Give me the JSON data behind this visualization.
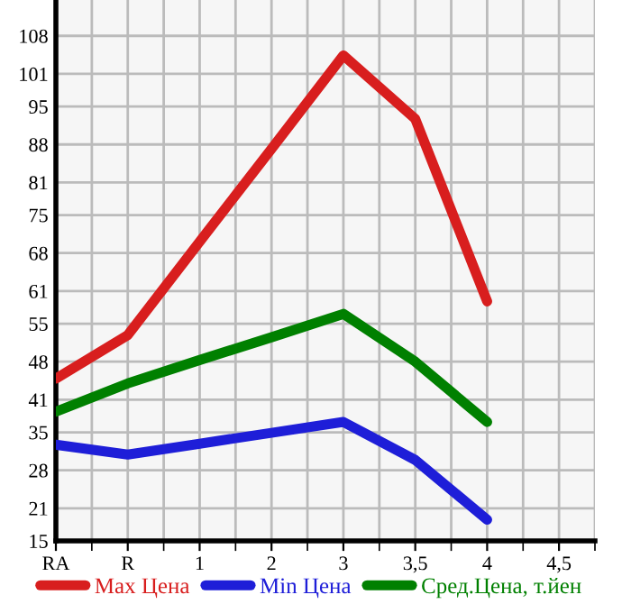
{
  "chart_data": {
    "type": "line",
    "categories": [
      "RA",
      "R",
      "1",
      "2",
      "3",
      "3,5",
      "4",
      "4,5"
    ],
    "series": [
      {
        "name": "Max Цена",
        "color": "#d81e1e",
        "values": [
          44.9,
          52.9,
          70.1,
          87.2,
          104.4,
          92.7,
          59.1,
          null
        ]
      },
      {
        "name": "Min Цена",
        "color": "#1e1ed8",
        "values": [
          32.7,
          30.9,
          32.9,
          34.9,
          36.9,
          29.9,
          18.9,
          null
        ]
      },
      {
        "name": "Сред.Цена, т.йен",
        "color": "#008000",
        "values": [
          38.8,
          44.0,
          48.3,
          52.5,
          56.8,
          48.0,
          36.9,
          null
        ]
      }
    ],
    "ylim": [
      15,
      114.6
    ],
    "yticks": [
      15,
      21,
      28,
      35,
      41,
      48,
      55,
      61,
      68,
      75,
      81,
      88,
      95,
      101,
      108
    ],
    "grid": true,
    "legend": "bottom",
    "marker": "none",
    "line_style": "solid"
  }
}
